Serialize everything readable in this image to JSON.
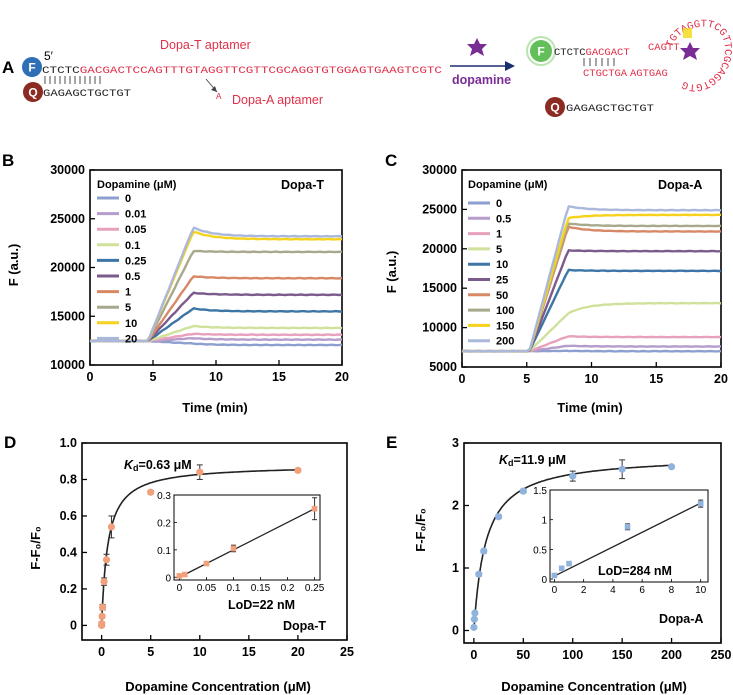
{
  "panel_a": {
    "label": "A",
    "f_label": "F",
    "q_label": "Q",
    "five_prime": "5′",
    "seq_prefix": "CTCTC",
    "seq_aptamer": "GACGACTCCAGTTTGTAGGTTCGTTCGCAGGTGTGGAGTGAAGTCGTC",
    "seq_quencher": "GAGAGCTGCTGT",
    "dopa_t_label": "Dopa-T aptamer",
    "dopa_a_label": "Dopa-A aptamer",
    "mutation_base": "A",
    "dopamine_label": "dopamine",
    "bound_prefix": "CTCTC",
    "bound_top": "GACGACT",
    "bound_bottom": "CTGCTGA",
    "bound_loop_top": "CAGTT",
    "bound_loop_bottom": "AGTGAG",
    "bound_hairpin": "TGTAGGTTCGTTCGCAGGTGTG",
    "released_q_seq": "GAGAGCTGCTGT",
    "colors": {
      "dna_red": "#e0304a",
      "fluor_blue": "#2e6fb5",
      "fluor_green": "#52b848",
      "quencher": "#8b2b22",
      "dopamine": "#7a2c95",
      "mutation": "#f2dc1e"
    }
  },
  "chart_data": [
    {
      "id": "B",
      "type": "line",
      "panel_label": "B",
      "title": "Dopa-T",
      "xlabel": "Time (min)",
      "ylabel": "F (a.u.)",
      "xlim": [
        0,
        20
      ],
      "ylim": [
        10000,
        30000
      ],
      "xticks": [
        0,
        5,
        10,
        15,
        20
      ],
      "yticks": [
        10000,
        15000,
        20000,
        25000,
        30000
      ],
      "xtick_labels": [
        "0",
        "5",
        "10",
        "15",
        "20"
      ],
      "ytick_labels": [
        "10000",
        "15000",
        "20000",
        "25000",
        "30000"
      ],
      "legend_title": "Dopamine (μM)",
      "baseline": 12450,
      "t_rise_start": 4.6,
      "t_peak": 8.2,
      "series": [
        {
          "name": "0",
          "color": "#8c9fce",
          "peak": 12200,
          "plateau": 12050
        },
        {
          "name": "0.01",
          "color": "#b59ccb",
          "peak": 12750,
          "plateau": 12600
        },
        {
          "name": "0.05",
          "color": "#e7a1bd",
          "peak": 13200,
          "plateau": 13100
        },
        {
          "name": "0.1",
          "color": "#cfe19a",
          "peak": 14000,
          "plateau": 13800
        },
        {
          "name": "0.25",
          "color": "#3d75a6",
          "peak": 15800,
          "plateau": 15500
        },
        {
          "name": "0.5",
          "color": "#7b5a8c",
          "peak": 17400,
          "plateau": 17200
        },
        {
          "name": "1",
          "color": "#d98866",
          "peak": 19100,
          "plateau": 18900
        },
        {
          "name": "5",
          "color": "#a8a88c",
          "peak": 21700,
          "plateau": 21600
        },
        {
          "name": "10",
          "color": "#f6d21c",
          "peak": 23700,
          "plateau": 22900
        },
        {
          "name": "20",
          "color": "#aab8dc",
          "peak": 24100,
          "plateau": 23200
        }
      ]
    },
    {
      "id": "C",
      "type": "line",
      "panel_label": "C",
      "title": "Dopa-A",
      "xlabel": "Time (min)",
      "ylabel": "F (a.u.)",
      "xlim": [
        0,
        20
      ],
      "ylim": [
        5000,
        30000
      ],
      "xticks": [
        0,
        5,
        10,
        15,
        20
      ],
      "yticks": [
        5000,
        10000,
        15000,
        20000,
        25000,
        30000
      ],
      "xtick_labels": [
        "0",
        "5",
        "10",
        "15",
        "20"
      ],
      "ytick_labels": [
        "5000",
        "10000",
        "15000",
        "20000",
        "25000",
        "30000"
      ],
      "legend_title": "Dopamine (μM)",
      "baseline": 7000,
      "t_rise_start": 5.2,
      "t_peak": 8.2,
      "series": [
        {
          "name": "0",
          "color": "#8c9fce",
          "peak": 7050,
          "plateau": 7000
        },
        {
          "name": "0.5",
          "color": "#b59ccb",
          "peak": 7700,
          "plateau": 7600
        },
        {
          "name": "1",
          "color": "#e7a1bd",
          "peak": 8900,
          "plateau": 8800
        },
        {
          "name": "5",
          "color": "#cfe19a",
          "peak": 11800,
          "plateau": 13100
        },
        {
          "name": "10",
          "color": "#3d75a6",
          "peak": 17300,
          "plateau": 17200
        },
        {
          "name": "25",
          "color": "#7b5a8c",
          "peak": 19800,
          "plateau": 19700
        },
        {
          "name": "50",
          "color": "#d98866",
          "peak": 22800,
          "plateau": 22200
        },
        {
          "name": "100",
          "color": "#a8a88c",
          "peak": 23200,
          "plateau": 22900
        },
        {
          "name": "150",
          "color": "#f6d21c",
          "peak": 23900,
          "plateau": 24300
        },
        {
          "name": "200",
          "color": "#aab8dc",
          "peak": 25400,
          "plateau": 24900
        }
      ]
    },
    {
      "id": "D",
      "type": "scatter",
      "panel_label": "D",
      "title": "Dopa-T",
      "kd_symbol": "K",
      "kd_sub": "d",
      "kd_value": "=0.63 μM",
      "kd": 0.63,
      "fit_max": 0.88,
      "xlabel": "Dopamine Concentration (μM)",
      "ylabel": "F-F₀/F₀",
      "xlim": [
        -2,
        25
      ],
      "ylim": [
        -0.08,
        1.0
      ],
      "xticks": [
        0,
        5,
        10,
        15,
        20,
        25
      ],
      "yticks": [
        0,
        0.2,
        0.4,
        0.6,
        0.8,
        1.0
      ],
      "xtick_labels": [
        "0",
        "5",
        "10",
        "15",
        "20",
        "25"
      ],
      "ytick_labels": [
        "0",
        "0.2",
        "0.4",
        "0.6",
        "0.8",
        "1.0"
      ],
      "point_color": "#f2a07c",
      "x": [
        0,
        0.01,
        0.05,
        0.1,
        0.25,
        0.5,
        1,
        5,
        10,
        20
      ],
      "y": [
        0.0,
        0.01,
        0.05,
        0.1,
        0.24,
        0.36,
        0.54,
        0.73,
        0.84,
        0.85
      ],
      "err": [
        0.005,
        0.01,
        0.01,
        0.015,
        0.02,
        0.03,
        0.06,
        0.01,
        0.04,
        0.01
      ],
      "inset": {
        "xlim": [
          -0.01,
          0.26
        ],
        "ylim": [
          -0.01,
          0.3
        ],
        "xticks": [
          0,
          0.05,
          0.1,
          0.15,
          0.2,
          0.25
        ],
        "yticks": [
          0,
          0.1,
          0.2,
          0.3
        ],
        "xtick_labels": [
          "0",
          "0.05",
          "0.1",
          "0.15",
          "0.2",
          "0.25"
        ],
        "ytick_labels": [
          "0",
          "0.1",
          "0.2",
          "0.3"
        ],
        "x": [
          0,
          0.01,
          0.05,
          0.1,
          0.25
        ],
        "y": [
          0.005,
          0.01,
          0.05,
          0.105,
          0.25
        ],
        "err": [
          0.005,
          0.005,
          0.005,
          0.012,
          0.04
        ],
        "fit": [
          [
            0,
            0.0
          ],
          [
            0.25,
            0.25
          ]
        ],
        "lod_text": "LoD=22 nM"
      }
    },
    {
      "id": "E",
      "type": "scatter",
      "panel_label": "E",
      "title": "Dopa-A",
      "kd_symbol": "K",
      "kd_sub": "d",
      "kd_value": "=11.9 μM",
      "kd": 11.9,
      "fit_max": 2.8,
      "xlabel": "Dopamine Concentration (μM)",
      "ylabel": "F-F₀/F₀",
      "xlim": [
        -10,
        250
      ],
      "ylim": [
        -0.2,
        3.0
      ],
      "xticks": [
        0,
        50,
        100,
        150,
        200,
        250
      ],
      "yticks": [
        0,
        1,
        2,
        3
      ],
      "xtick_labels": [
        "0",
        "50",
        "100",
        "150",
        "200",
        "250"
      ],
      "ytick_labels": [
        "0",
        "1",
        "2",
        "3"
      ],
      "point_color": "#8fb3dd",
      "x": [
        0,
        0.5,
        1,
        5,
        10,
        25,
        50,
        100,
        150,
        200
      ],
      "y": [
        0.05,
        0.18,
        0.28,
        0.9,
        1.27,
        1.82,
        2.23,
        2.47,
        2.58,
        2.62
      ],
      "err": [
        0.01,
        0.02,
        0.02,
        0.03,
        0.03,
        0.03,
        0.03,
        0.08,
        0.15,
        0.02
      ],
      "inset": {
        "xlim": [
          -0.3,
          10.5
        ],
        "ylim": [
          -0.05,
          1.5
        ],
        "xticks": [
          0,
          2,
          4,
          6,
          8,
          10
        ],
        "yticks": [
          0,
          0.5,
          1,
          1.5
        ],
        "xtick_labels": [
          "0",
          "2",
          "4",
          "6",
          "8",
          "10"
        ],
        "ytick_labels": [
          "0",
          "0.5",
          "1",
          "1.5"
        ],
        "x": [
          0,
          0.5,
          1,
          5,
          10
        ],
        "y": [
          0.06,
          0.18,
          0.26,
          0.88,
          1.27
        ],
        "err": [
          0.02,
          0.02,
          0.02,
          0.05,
          0.06
        ],
        "fit": [
          [
            0,
            0.05
          ],
          [
            10,
            1.28
          ]
        ],
        "lod_text": "LoD=284 nM"
      }
    }
  ]
}
